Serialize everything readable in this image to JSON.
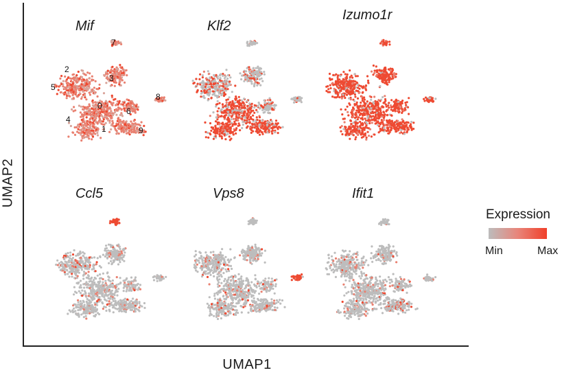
{
  "axes": {
    "x_label": "UMAP1",
    "y_label": "UMAP2"
  },
  "panels": [
    {
      "gene": "Mif",
      "expression": "high-uniform"
    },
    {
      "gene": "Klf2",
      "expression": "mixed"
    },
    {
      "gene": "Izumo1r",
      "expression": "high"
    },
    {
      "gene": "Ccl5",
      "expression": "low"
    },
    {
      "gene": "Vps8",
      "expression": "low"
    },
    {
      "gene": "Ifit1",
      "expression": "low"
    }
  ],
  "cluster_labels": [
    "0",
    "1",
    "2",
    "3",
    "4",
    "5",
    "6",
    "7",
    "8",
    "9"
  ],
  "legend": {
    "title": "Expression",
    "min_label": "Min",
    "max_label": "Max",
    "colors": {
      "min": "#bcbcbc",
      "max": "#f0402a"
    }
  }
}
